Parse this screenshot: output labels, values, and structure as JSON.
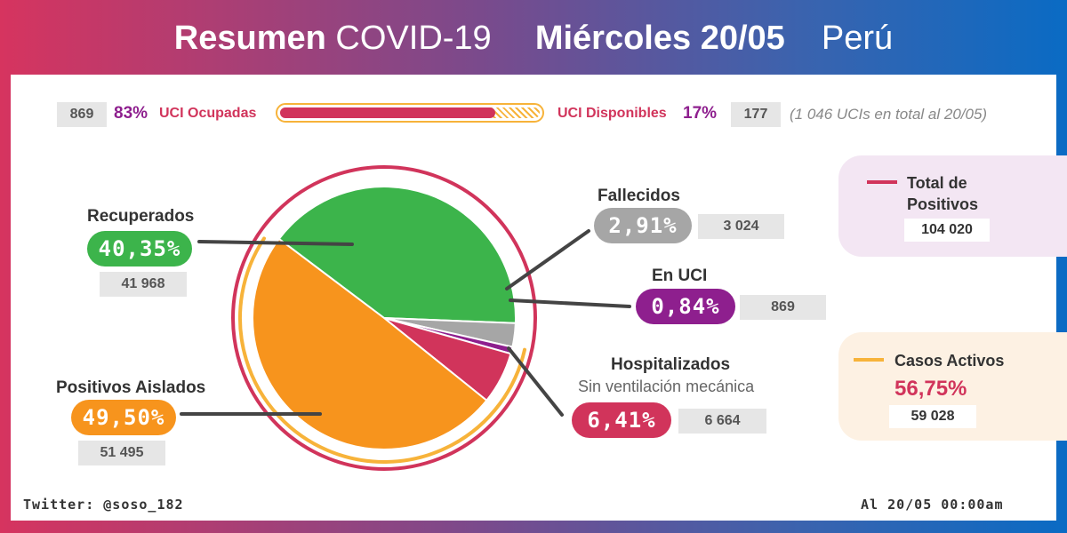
{
  "header": {
    "title_bold": "Resumen",
    "title_light": "COVID-19",
    "date_bold": "Miércoles 20/05",
    "country": "Perú"
  },
  "uci": {
    "occupied_count": "869",
    "occupied_pct": "83%",
    "occupied_label": "UCI Ocupadas",
    "available_label": "UCI Disponibles",
    "available_pct": "17%",
    "available_count": "177",
    "total_note": "(1 046 UCIs en total al 20/05)",
    "occupied_fraction": 0.83
  },
  "labels": {
    "recuperados": {
      "name": "Recuperados",
      "pct": "40,35%",
      "count": "41 968"
    },
    "aislados": {
      "name": "Positivos Aislados",
      "pct": "49,50%",
      "count": "51 495"
    },
    "fallecidos": {
      "name": "Fallecidos",
      "pct": "2,91%",
      "count": "3 024"
    },
    "en_uci": {
      "name": "En UCI",
      "pct": "0,84%",
      "count": "869"
    },
    "hospitalizados": {
      "name": "Hospitalizados",
      "sub": "Sin ventilación mecánica",
      "pct": "6,41%",
      "count": "6 664"
    }
  },
  "total": {
    "label_line1": "Total de",
    "label_line2": "Positivos",
    "value": "104 020"
  },
  "activos": {
    "label": "Casos Activos",
    "pct": "56,75%",
    "value": "59 028"
  },
  "footer": {
    "twitter": "Twitter: @soso_182",
    "timestamp": "Al 20/05 00:00am"
  },
  "colors": {
    "recuperados": "#3cb44b",
    "aislados": "#f7941d",
    "fallecidos": "#a6a6a6",
    "en_uci": "#8e1f8e",
    "hospitalizados": "#d1345b"
  },
  "chart_data": {
    "type": "pie",
    "title": "Resumen COVID-19 Miércoles 20/05 Perú",
    "categories": [
      "Recuperados",
      "Fallecidos",
      "En UCI",
      "Hospitalizados",
      "Positivos Aislados"
    ],
    "values": [
      40.35,
      2.91,
      0.84,
      6.41,
      49.5
    ],
    "counts": [
      41968,
      3024,
      869,
      6664,
      51495
    ],
    "total": 104020,
    "active_cases_pct": 56.75,
    "active_cases": 59028
  }
}
